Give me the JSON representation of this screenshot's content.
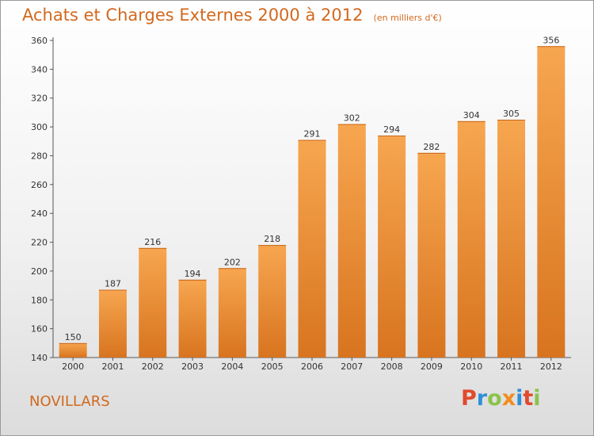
{
  "header": {
    "title": "Achats et Charges Externes 2000 à 2012",
    "subtitle": "(en milliers d'€)"
  },
  "footer": {
    "place": "NOVILLARS",
    "logo": "Proxiti"
  },
  "colors": {
    "bar_light": "#f7a650",
    "bar_dark": "#d8741f",
    "title": "#d2691e",
    "logo": [
      "#e04a2d",
      "#2f8fd8",
      "#8bc34a",
      "#f28c1e",
      "#2f8fd8",
      "#e04a2d",
      "#8bc34a"
    ]
  },
  "chart_data": {
    "type": "bar",
    "title": "Achats et Charges Externes 2000 à 2012",
    "subtitle": "(en milliers d'€)",
    "xlabel": "",
    "ylabel": "",
    "categories": [
      "2000",
      "2001",
      "2002",
      "2003",
      "2004",
      "2005",
      "2006",
      "2007",
      "2008",
      "2009",
      "2010",
      "2011",
      "2012"
    ],
    "values": [
      150,
      187,
      216,
      194,
      202,
      218,
      291,
      302,
      294,
      282,
      304,
      305,
      356
    ],
    "ylim": [
      140,
      360
    ],
    "yticks": [
      140,
      160,
      180,
      200,
      220,
      240,
      260,
      280,
      300,
      320,
      340,
      360
    ],
    "grid": false,
    "legend": "none"
  }
}
